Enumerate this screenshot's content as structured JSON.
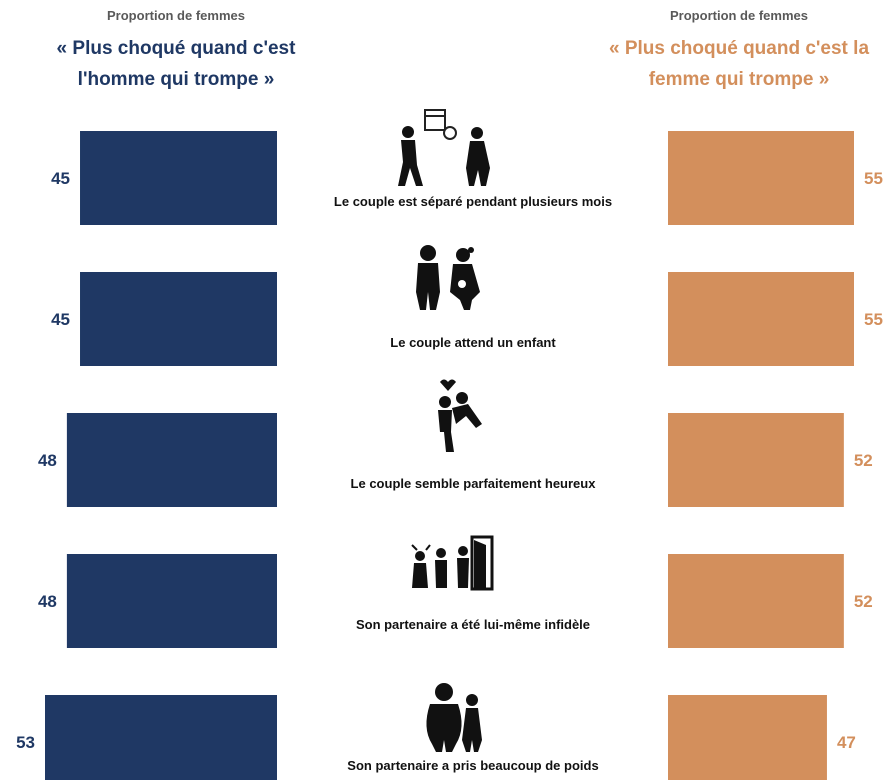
{
  "left_header": {
    "subtitle": "Proportion de femmes",
    "title_line1": "« Plus choqué quand c'est",
    "title_line2": "l'homme qui trompe »"
  },
  "right_header": {
    "subtitle": "Proportion de femmes",
    "title_line1": "« Plus choqué quand c'est la",
    "title_line2": "femme qui trompe »"
  },
  "chart_data": {
    "type": "bar",
    "orientation": "horizontal-butterfly",
    "categories": [
      "Le couple est séparé pendant plusieurs mois",
      "Le couple attend un enfant",
      "Le couple semble parfaitement heureux",
      "Son partenaire a été lui-même infidèle",
      "Son partenaire a pris beaucoup de poids"
    ],
    "series": [
      {
        "name": "« Plus choqué quand c'est l'homme qui trompe »",
        "color": "#1f3864",
        "side": "left",
        "values": [
          45,
          45,
          48,
          48,
          53
        ]
      },
      {
        "name": "« Plus choqué quand c'est la femme qui trompe »",
        "color": "#d38f5c",
        "side": "right",
        "values": [
          55,
          55,
          52,
          52,
          47
        ]
      }
    ],
    "icons": [
      "calendar-separation-icon",
      "pregnant-couple-icon",
      "happy-couple-icon",
      "cheating-partner-icon",
      "overweight-partner-icon"
    ],
    "grid": false
  }
}
